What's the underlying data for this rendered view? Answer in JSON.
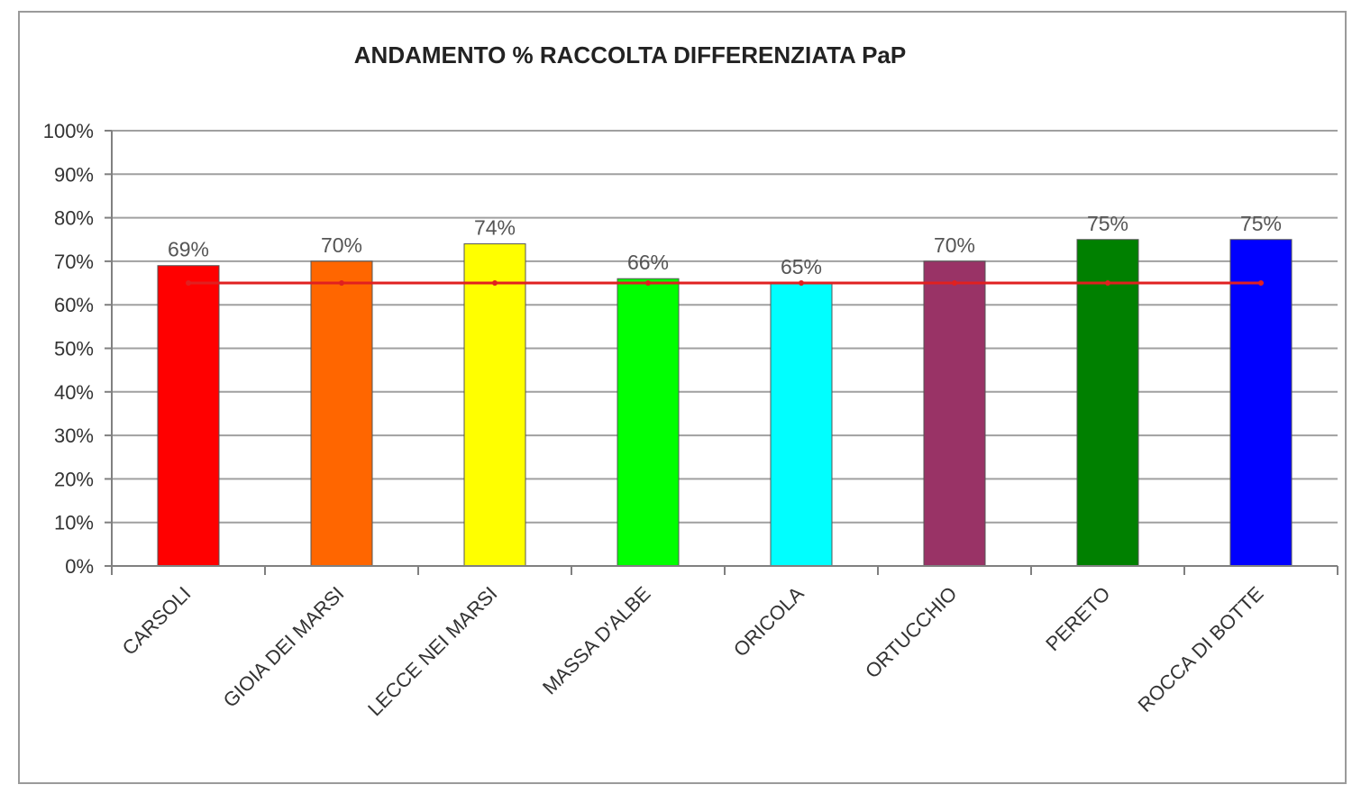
{
  "chart_data": {
    "type": "bar",
    "title": "ANDAMENTO % RACCOLTA DIFFERENZIATA PaP",
    "categories": [
      "CARSOLI",
      "GIOIA DEI MARSI",
      "LECCE NEI MARSI",
      "MASSA D'ALBE",
      "ORICOLA",
      "ORTUCCHIO",
      "PERETO",
      "ROCCA DI BOTTE"
    ],
    "values": [
      69,
      70,
      74,
      66,
      65,
      70,
      75,
      75
    ],
    "data_labels": [
      "69%",
      "70%",
      "74%",
      "66%",
      "65%",
      "70%",
      "75%",
      "75%"
    ],
    "bar_colors": [
      "#ff0000",
      "#ff6600",
      "#ffff00",
      "#00ff00",
      "#00ffff",
      "#993366",
      "#008000",
      "#0000ff"
    ],
    "reference_line": {
      "value": 65,
      "color": "#e02020"
    },
    "ylim": [
      0,
      100
    ],
    "y_ticks": [
      "0%",
      "10%",
      "20%",
      "30%",
      "40%",
      "50%",
      "60%",
      "70%",
      "80%",
      "90%",
      "100%"
    ],
    "xlabel": "",
    "ylabel": "",
    "grid": true,
    "legend": false
  }
}
